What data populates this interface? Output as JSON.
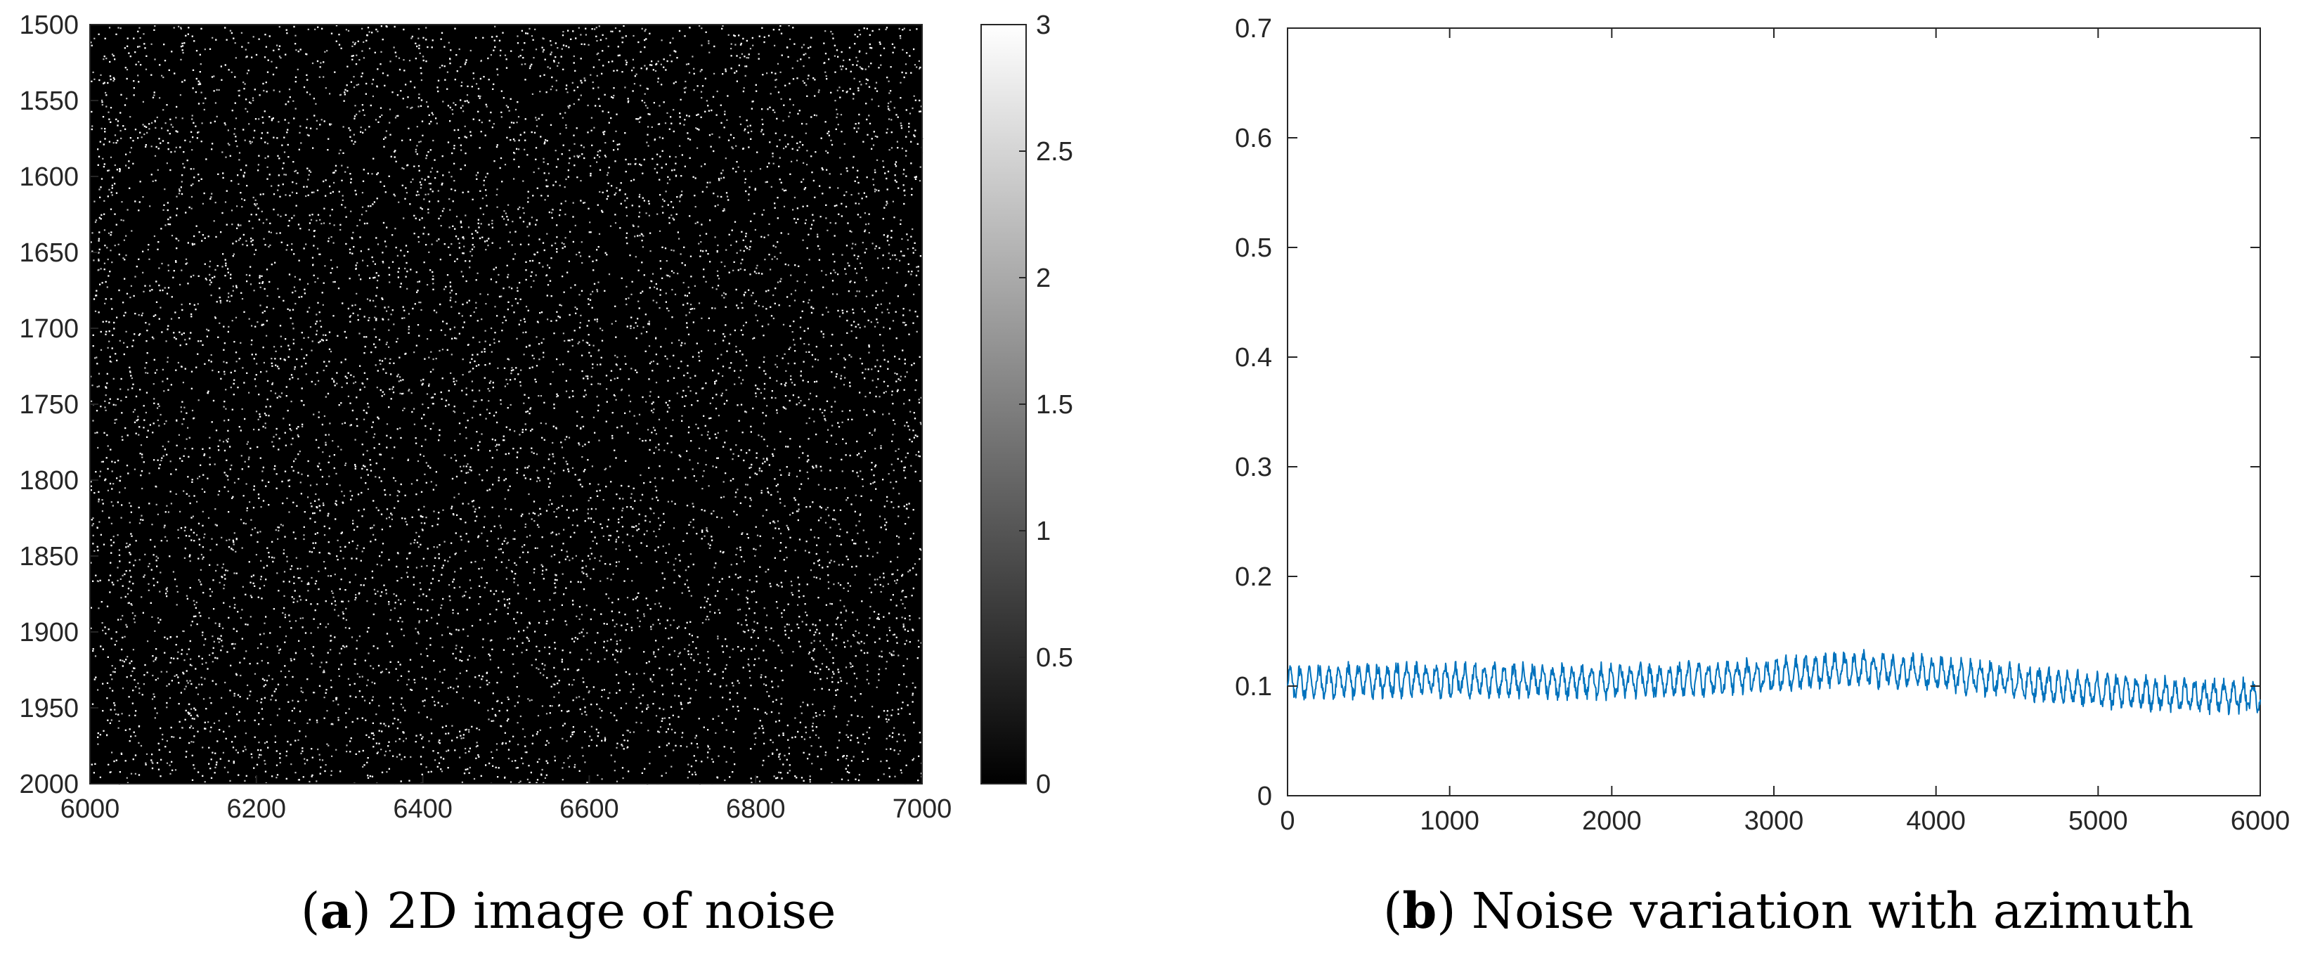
{
  "chart_data": [
    {
      "type": "heatmap",
      "caption_letter": "a",
      "caption_text": ") 2D image of noise",
      "caption_open": "(",
      "xlim": [
        6000,
        7000
      ],
      "ylim": [
        1500,
        2000
      ],
      "x_ticks": [
        "6000",
        "6200",
        "6400",
        "6600",
        "6800",
        "7000"
      ],
      "y_ticks": [
        "1500",
        "1550",
        "1600",
        "1650",
        "1700",
        "1750",
        "1800",
        "1850",
        "1900",
        "1950",
        "2000"
      ],
      "y_direction": "reversed",
      "colormap": "gray",
      "colorbar": {
        "range": [
          0,
          3
        ],
        "ticks": [
          "0",
          "0.5",
          "1",
          "1.5",
          "2",
          "2.5",
          "3"
        ],
        "position": "right"
      },
      "pixel_value_description": "sparse speckle noise; mostly 0 with scattered bright pixels"
    },
    {
      "type": "line",
      "caption_letter": "b",
      "caption_text": ") Noise variation with azimuth",
      "caption_open": "(",
      "xlim": [
        0,
        6000
      ],
      "ylim": [
        0,
        0.7
      ],
      "x_ticks": [
        "0",
        "1000",
        "2000",
        "3000",
        "4000",
        "5000",
        "6000"
      ],
      "y_ticks": [
        "0",
        "0.1",
        "0.2",
        "0.3",
        "0.4",
        "0.5",
        "0.6",
        "0.7"
      ],
      "grid": false,
      "series": [
        {
          "color": "#0072BD",
          "trend_x": [
            0,
            500,
            1000,
            1500,
            2000,
            2500,
            3000,
            3500,
            4000,
            4500,
            5000,
            5500,
            6000
          ],
          "trend_y": [
            0.103,
            0.105,
            0.106,
            0.105,
            0.104,
            0.106,
            0.11,
            0.116,
            0.112,
            0.104,
            0.096,
            0.092,
            0.09
          ],
          "oscillation_amplitude": 0.012,
          "oscillation_period": 60
        }
      ]
    }
  ]
}
